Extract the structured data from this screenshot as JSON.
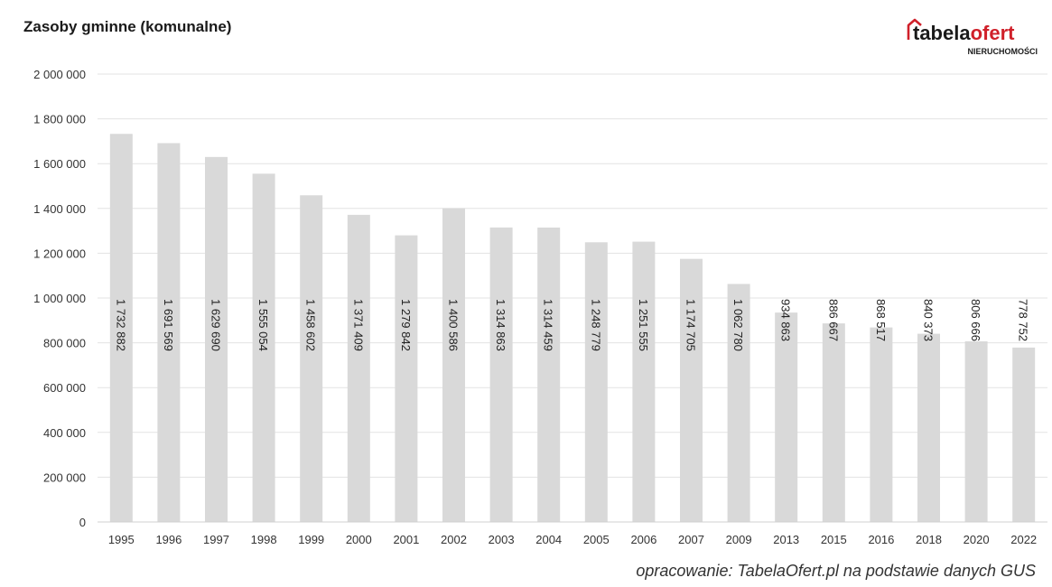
{
  "logo": {
    "brand_main": "tabela",
    "brand_accent": "ofert",
    "tagline": "NIERUCHOMOŚCI",
    "accent_color": "#d0202a"
  },
  "source_note": "opracowanie: TabelaOfert.pl na podstawie danych GUS",
  "chart_data": {
    "type": "bar",
    "title": "Zasoby gminne (komunalne)",
    "categories": [
      "1995",
      "1996",
      "1997",
      "1998",
      "1999",
      "2000",
      "2001",
      "2002",
      "2003",
      "2004",
      "2005",
      "2006",
      "2007",
      "2009",
      "2013",
      "2015",
      "2016",
      "2018",
      "2020",
      "2022"
    ],
    "values": [
      1732882,
      1691569,
      1629690,
      1555054,
      1458602,
      1371409,
      1279842,
      1400586,
      1314863,
      1314459,
      1248779,
      1251555,
      1174705,
      1062780,
      934863,
      886667,
      868517,
      840373,
      806666,
      778752
    ],
    "data_labels": [
      "1 732 882",
      "1 691 569",
      "1 629 690",
      "1 555 054",
      "1 458 602",
      "1 371 409",
      "1 279 842",
      "1 400 586",
      "1 314 863",
      "1 314 459",
      "1 248 779",
      "1 251 555",
      "1 174 705",
      "1 062 780",
      "934 863",
      "886 667",
      "868 517",
      "840 373",
      "806 666",
      "778 752"
    ],
    "y_ticks": [
      0,
      200000,
      400000,
      600000,
      800000,
      1000000,
      1200000,
      1400000,
      1600000,
      1800000,
      2000000
    ],
    "y_tick_labels": [
      "0",
      "200 000",
      "400 000",
      "600 000",
      "800 000",
      "1 000 000",
      "1 200 000",
      "1 400 000",
      "1 600 000",
      "1 800 000",
      "2 000 000"
    ],
    "ylim": [
      0,
      2000000
    ],
    "grid": true,
    "legend": "none",
    "bar_color": "#d9d9d9",
    "grid_color": "#e3e3e3"
  }
}
